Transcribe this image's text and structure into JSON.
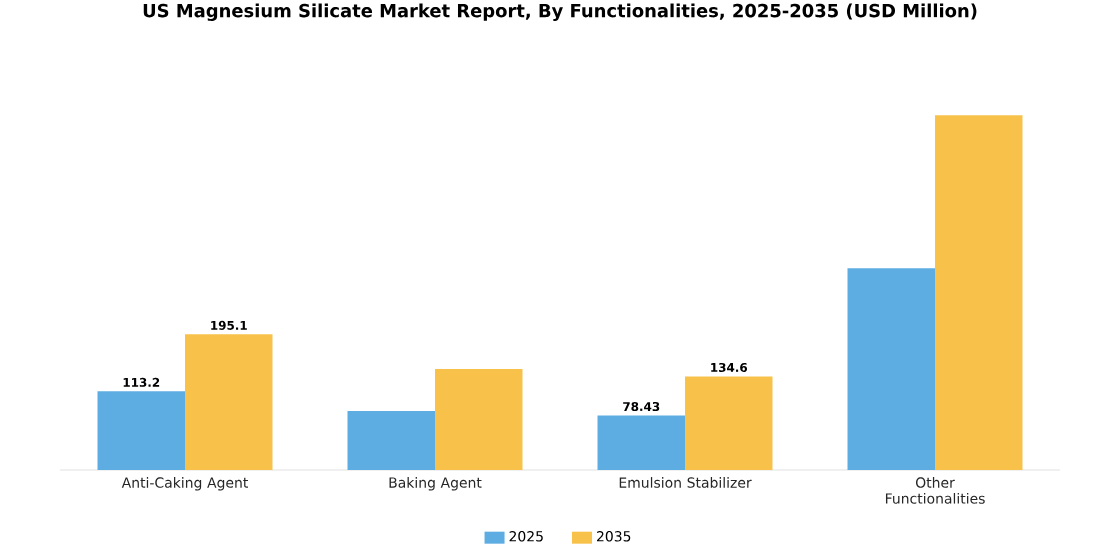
{
  "chart_data": {
    "type": "bar",
    "title": "US Magnesium Silicate Market Report, By Functionalities, 2025-2035 (USD Million)",
    "categories": [
      "Anti-Caking Agent",
      "Baking Agent",
      "Emulsion Stabilizer",
      "Other Functionalities"
    ],
    "series": [
      {
        "name": "2025",
        "color": "#5dade2",
        "values": [
          113.2,
          84.9,
          78.43,
          290
        ],
        "value_labels": [
          "113.2",
          null,
          "78.43",
          null
        ]
      },
      {
        "name": "2035",
        "color": "#f8c24a",
        "values": [
          195.1,
          145.4,
          134.6,
          510
        ],
        "value_labels": [
          "195.1",
          null,
          "134.6",
          null
        ]
      }
    ],
    "legend": "bottom",
    "grid": false,
    "tick_labels": "x"
  }
}
